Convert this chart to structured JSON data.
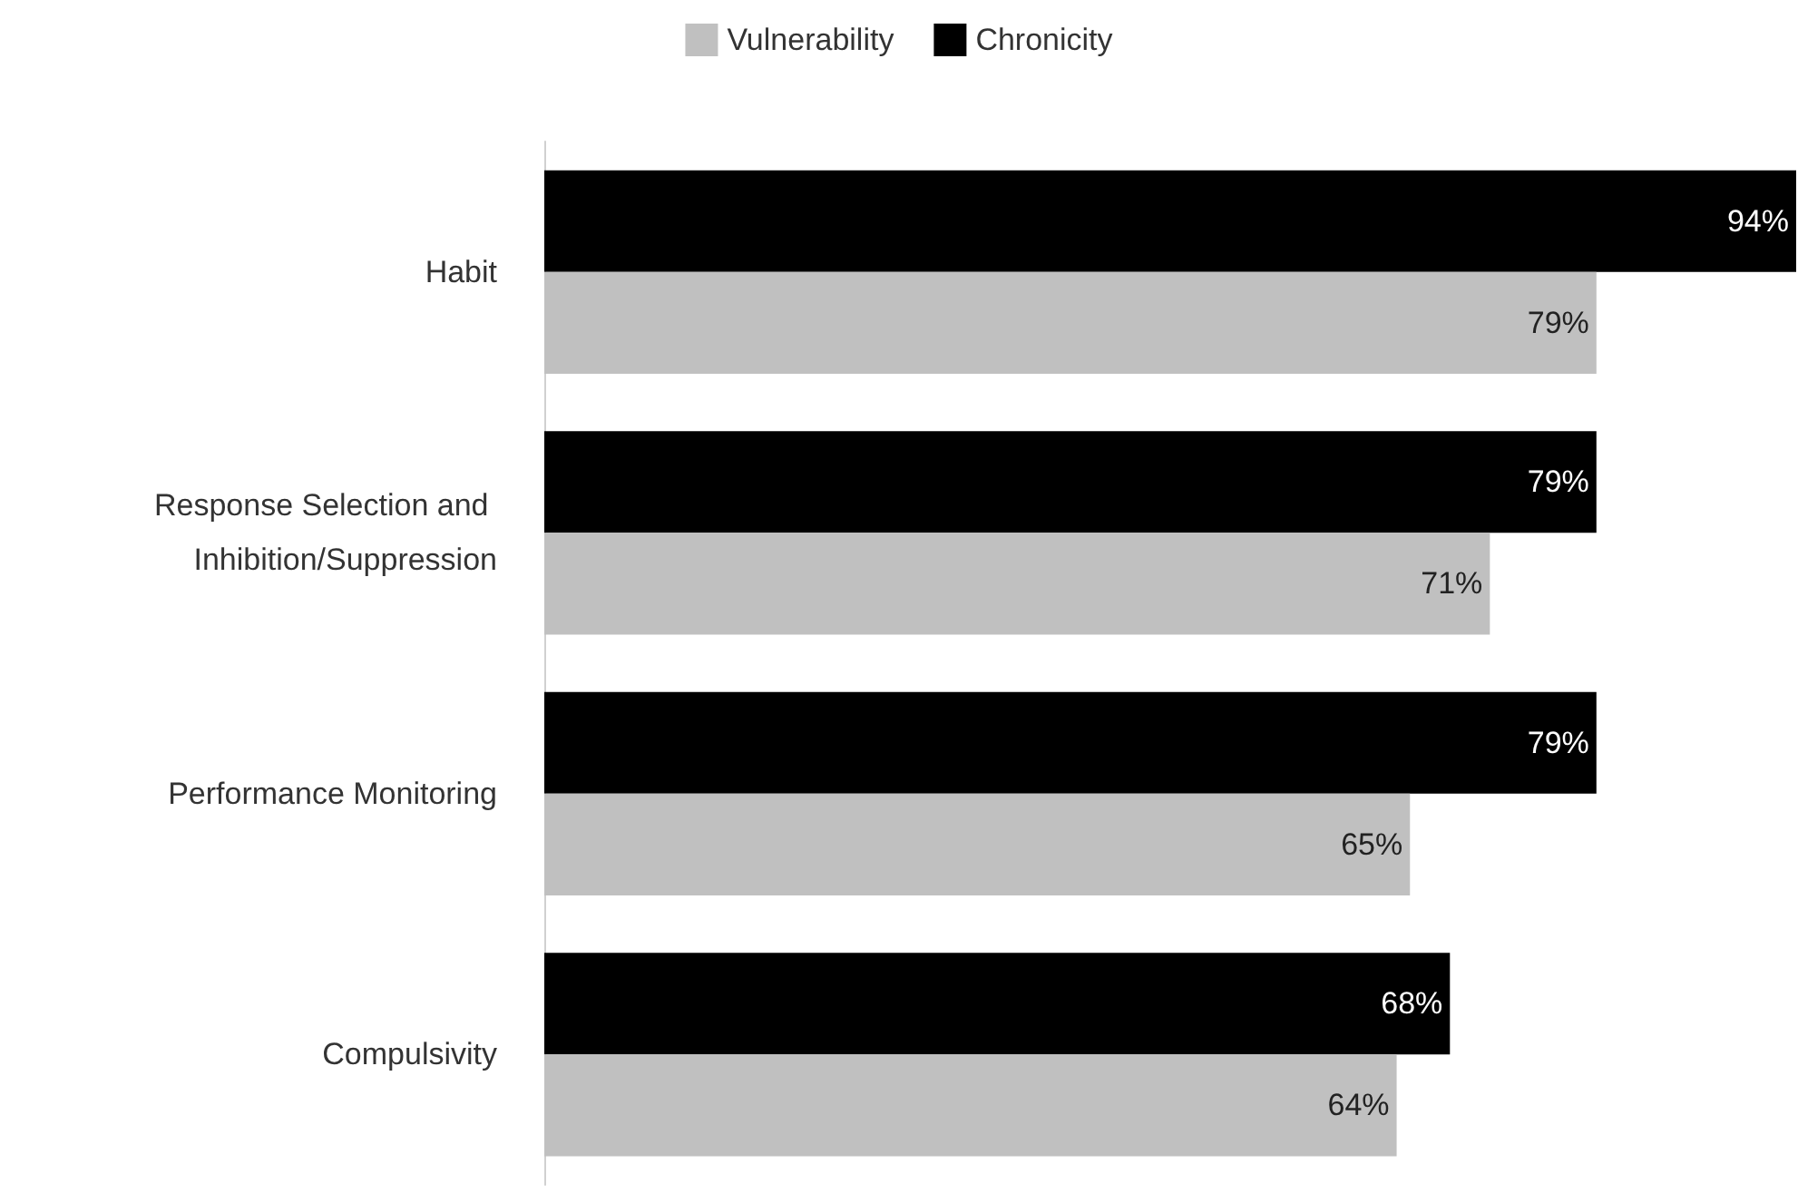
{
  "chart_data": {
    "type": "bar",
    "orientation": "horizontal",
    "categories": [
      "Habit",
      "Response Selection and Inhibition/Suppression",
      "Performance Monitoring",
      "Compulsivity"
    ],
    "series": [
      {
        "name": "Vulnerability",
        "color": "#c0c0c0",
        "values": [
          79,
          71,
          65,
          64
        ],
        "value_labels": [
          "79%",
          "71%",
          "65%",
          "64%"
        ]
      },
      {
        "name": "Chronicity",
        "color": "#000000",
        "values": [
          94,
          79,
          79,
          68
        ],
        "value_labels": [
          "94%",
          "79%",
          "79%",
          "68%"
        ]
      }
    ],
    "legend": "top",
    "grid": false
  }
}
